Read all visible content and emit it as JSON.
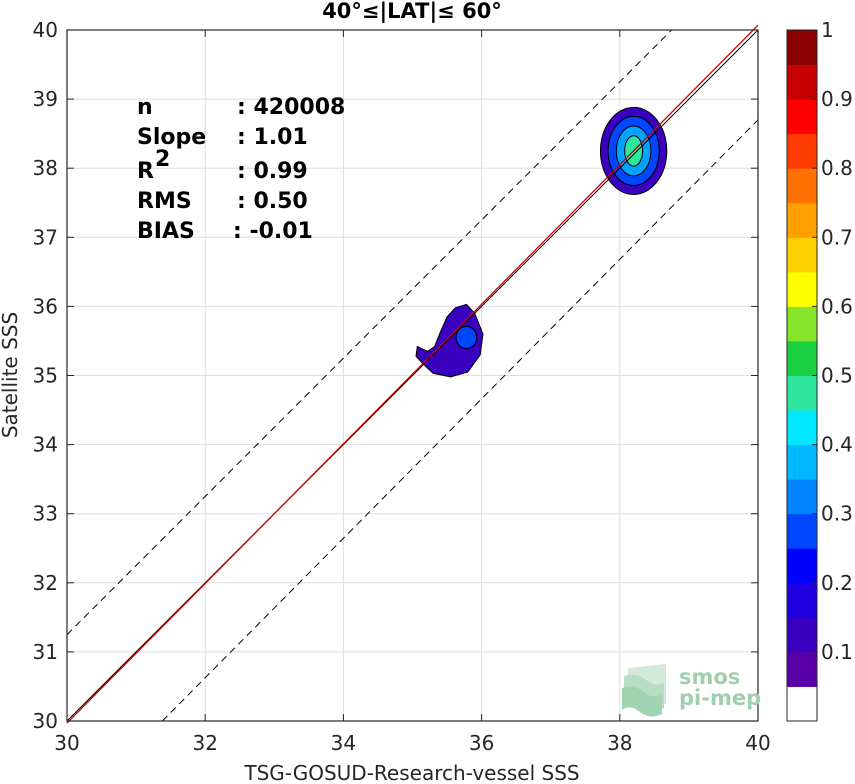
{
  "chart_data": {
    "type": "heatmap",
    "title": "40°≤|LAT|≤ 60°",
    "xlabel": "TSG-GOSUD-Research-vessel SSS",
    "ylabel": "Satellite SSS",
    "xlim": [
      30,
      40
    ],
    "ylim": [
      30,
      40
    ],
    "xticks": [
      30,
      32,
      34,
      36,
      38,
      40
    ],
    "yticks": [
      30,
      31,
      32,
      33,
      34,
      35,
      36,
      37,
      38,
      39,
      40
    ],
    "grid": true,
    "stats": [
      {
        "label": "n",
        "value": ": 420008"
      },
      {
        "label": "Slope",
        "value": ": 1.01"
      },
      {
        "label": "R",
        "sup": "2",
        "value": ": 0.99"
      },
      {
        "label": "RMS",
        "value": ": 0.50"
      },
      {
        "label": "BIAS",
        "value": ": -0.01"
      }
    ],
    "lines": [
      {
        "name": "identity",
        "color": "#000000",
        "style": "solid",
        "points": [
          [
            30,
            30
          ],
          [
            40,
            40
          ]
        ]
      },
      {
        "name": "regression",
        "color": "#cc0000",
        "style": "solid",
        "points": [
          [
            30,
            29.97
          ],
          [
            40,
            40.07
          ]
        ]
      },
      {
        "name": "upper-bound",
        "color": "#000000",
        "style": "dashed",
        "points": [
          [
            30,
            31.25
          ],
          [
            38.75,
            40
          ]
        ]
      },
      {
        "name": "lower-bound",
        "color": "#000000",
        "style": "dashed",
        "points": [
          [
            31.38,
            30
          ],
          [
            40,
            38.7
          ]
        ]
      }
    ],
    "density_clusters": [
      {
        "center": [
          38.2,
          38.25
        ],
        "levels": [
          {
            "rx": 0.48,
            "ry": 0.63,
            "color": "#3a00bf"
          },
          {
            "rx": 0.37,
            "ry": 0.5,
            "color": "#0046ff"
          },
          {
            "rx": 0.25,
            "ry": 0.36,
            "color": "#00a2ff"
          },
          {
            "rx": 0.13,
            "ry": 0.22,
            "color": "#2ee6a0"
          }
        ]
      },
      {
        "center": [
          35.55,
          35.55
        ],
        "levels": [
          {
            "color": "#3a00bf"
          },
          {
            "rx": 0.15,
            "ry": 0.16,
            "color": "#0046ff",
            "cx": 35.78,
            "cy": 35.55
          }
        ]
      }
    ],
    "colorbar": {
      "range": [
        0,
        1
      ],
      "ticks": [
        "0.1",
        "0.2",
        "0.3",
        "0.4",
        "0.5",
        "0.6",
        "0.7",
        "0.8",
        "0.9",
        "1"
      ],
      "tick_values": [
        0.1,
        0.2,
        0.3,
        0.4,
        0.5,
        0.6,
        0.7,
        0.8,
        0.9,
        1.0
      ],
      "colors": [
        "#ffffff",
        "#5a00a8",
        "#3a00bf",
        "#2000e0",
        "#0000ff",
        "#0046ff",
        "#0084ff",
        "#00b8ff",
        "#00e8ff",
        "#2ee6a0",
        "#1bd040",
        "#86e52a",
        "#ffff00",
        "#ffd000",
        "#ffa000",
        "#ff7000",
        "#ff3c00",
        "#ff0000",
        "#c80000",
        "#8b0000"
      ]
    },
    "logo": {
      "line1": "smos",
      "line2": "pi-mep"
    }
  }
}
